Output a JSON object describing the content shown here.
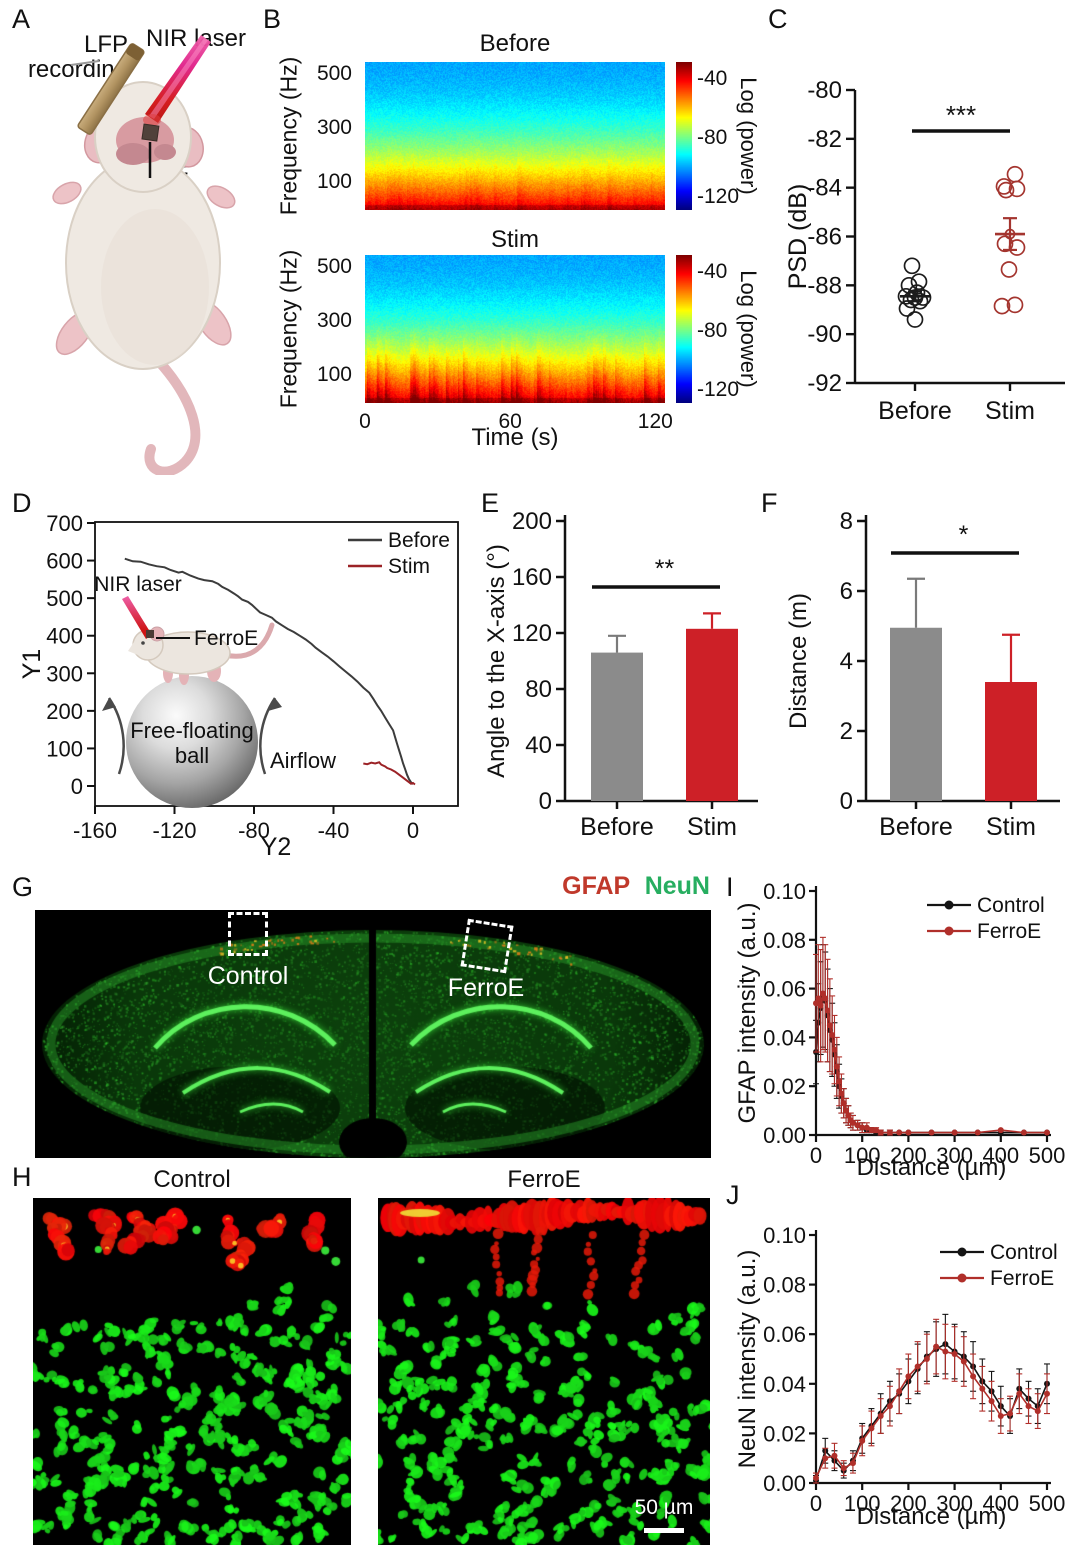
{
  "panels": {
    "A": {
      "letter": "A",
      "lfp_label": "LFP recording",
      "nir_label": "NIR laser",
      "ferroe_label": "FerroE"
    },
    "B": {
      "letter": "B"
    },
    "C": {
      "letter": "C"
    },
    "D": {
      "letter": "D"
    },
    "E": {
      "letter": "E"
    },
    "F": {
      "letter": "F"
    },
    "G": {
      "letter": "G",
      "gfap_label": "GFAP",
      "gfap_color": "#c0392b",
      "neun_label": "NeuN",
      "neun_color": "#27ae60",
      "control_label": "Control",
      "ferroe_label": "FerroE"
    },
    "H": {
      "letter": "H",
      "control_title": "Control",
      "ferroe_title": "FerroE",
      "scalebar_label": "50 µm"
    },
    "I": {
      "letter": "I"
    },
    "J": {
      "letter": "J"
    }
  },
  "chart_data": [
    {
      "id": "B",
      "type": "heatmap",
      "titles": [
        "Before",
        "Stim"
      ],
      "xlabel": "Time (s)",
      "ylabel": "Frequency (Hz)",
      "xticks": [
        0,
        60,
        120
      ],
      "yticks": [
        500,
        300,
        100
      ],
      "xlim": [
        0,
        124
      ],
      "ylim": [
        0,
        550
      ],
      "colorbar": {
        "label": "Log (power)",
        "ticks": [
          -40,
          -80,
          -120
        ],
        "range": [
          -128,
          -28
        ]
      },
      "description": "LFP spectrograms before and during NIR stimulation; power decreases with frequency; Stim shows stronger low-frequency bursts"
    },
    {
      "id": "C",
      "type": "scatter",
      "ylabel": "PSD (dB)",
      "ylim": [
        -92,
        -80
      ],
      "yticks": [
        -80,
        -82,
        -84,
        -86,
        -88,
        -90,
        -92
      ],
      "categories": [
        "Before",
        "Stim"
      ],
      "significance": "***",
      "series": [
        {
          "name": "Before",
          "color": "#1c1c1c",
          "mean": -88.45,
          "sem": 0.2,
          "points": [
            [
              -3,
              -87.2
            ],
            [
              4,
              -87.85
            ],
            [
              -6,
              -88.0
            ],
            [
              2,
              -88.3
            ],
            [
              -9,
              -88.45
            ],
            [
              0,
              -88.5
            ],
            [
              8,
              -88.5
            ],
            [
              -4,
              -88.6
            ],
            [
              5,
              -88.65
            ],
            [
              -8,
              -88.95
            ],
            [
              0,
              -89.4
            ]
          ]
        },
        {
          "name": "Stim",
          "color": "#a4352f",
          "mean": -85.9,
          "sem": 0.65,
          "points": [
            [
              5,
              -83.45
            ],
            [
              -6,
              -83.95
            ],
            [
              -4,
              -84.1
            ],
            [
              7,
              -84.05
            ],
            [
              -5,
              -86.3
            ],
            [
              7,
              -86.45
            ],
            [
              -1,
              -87.35
            ],
            [
              -8,
              -88.85
            ],
            [
              5,
              -88.8
            ]
          ]
        }
      ]
    },
    {
      "id": "D",
      "type": "line",
      "xlabel": "Y2",
      "ylabel": "Y1",
      "xlim": [
        -165,
        25
      ],
      "ylim": [
        -55,
        700
      ],
      "xticks": [
        -160,
        -120,
        -80,
        -40,
        0
      ],
      "yticks": [
        0,
        100,
        200,
        300,
        400,
        500,
        600,
        700
      ],
      "legend": [
        "Before",
        "Stim"
      ],
      "inset_labels": {
        "nir": "NIR laser",
        "ferroe": "FerroE",
        "ball_line1": "Free-floating",
        "ball_line2": "ball",
        "airflow": "Airflow"
      },
      "series": [
        {
          "name": "Before",
          "color": "#3c3c3c",
          "points": [
            [
              -145,
              605
            ],
            [
              -141,
              598
            ],
            [
              -137,
              597
            ],
            [
              -133,
              590
            ],
            [
              -129,
              585
            ],
            [
              -125,
              582
            ],
            [
              -122,
              575
            ],
            [
              -118,
              568
            ],
            [
              -116,
              570
            ],
            [
              -112,
              560
            ],
            [
              -108,
              552
            ],
            [
              -105,
              548
            ],
            [
              -101,
              545
            ],
            [
              -98,
              538
            ],
            [
              -96,
              530
            ],
            [
              -93,
              522
            ],
            [
              -90,
              512
            ],
            [
              -88,
              505
            ],
            [
              -86,
              496
            ],
            [
              -83,
              490
            ],
            [
              -81,
              482
            ],
            [
              -79,
              472
            ],
            [
              -77,
              462
            ],
            [
              -74,
              455
            ],
            [
              -71,
              448
            ],
            [
              -69,
              438
            ],
            [
              -66,
              428
            ],
            [
              -63,
              418
            ],
            [
              -60,
              410
            ],
            [
              -57,
              400
            ],
            [
              -54,
              390
            ],
            [
              -51,
              378
            ],
            [
              -49,
              368
            ],
            [
              -46,
              356
            ],
            [
              -43,
              345
            ],
            [
              -40,
              332
            ],
            [
              -37,
              318
            ],
            [
              -34,
              305
            ],
            [
              -31,
              292
            ],
            [
              -28,
              278
            ],
            [
              -25,
              262
            ],
            [
              -22,
              248
            ],
            [
              -20,
              232
            ],
            [
              -18,
              215
            ],
            [
              -16,
              200
            ],
            [
              -14,
              182
            ],
            [
              -12,
              165
            ],
            [
              -10,
              148
            ],
            [
              -9,
              130
            ],
            [
              -8,
              112
            ],
            [
              -7,
              95
            ],
            [
              -6,
              78
            ],
            [
              -5,
              60
            ],
            [
              -4,
              45
            ],
            [
              -3,
              30
            ],
            [
              -2,
              18
            ],
            [
              -1,
              10
            ],
            [
              0,
              5
            ]
          ]
        },
        {
          "name": "Stim",
          "color": "#9b2226",
          "points": [
            [
              -25,
              60
            ],
            [
              -23,
              58
            ],
            [
              -21,
              62
            ],
            [
              -19,
              60
            ],
            [
              -17,
              63
            ],
            [
              -16,
              57
            ],
            [
              -14,
              52
            ],
            [
              -13,
              48
            ],
            [
              -11,
              44
            ],
            [
              -9,
              38
            ],
            [
              -7,
              30
            ],
            [
              -5,
              22
            ],
            [
              -3,
              14
            ],
            [
              -2,
              10
            ],
            [
              -1,
              6
            ],
            [
              0,
              8
            ],
            [
              1,
              4
            ]
          ]
        }
      ]
    },
    {
      "id": "E",
      "type": "bar",
      "ylabel": "Angle to the X-axis (°)",
      "ylim": [
        0,
        200
      ],
      "yticks": [
        0,
        40,
        80,
        120,
        160,
        200
      ],
      "categories": [
        "Before",
        "Stim"
      ],
      "values": [
        106,
        123
      ],
      "errors": [
        12,
        11
      ],
      "colors": [
        "#8b8b8b",
        "#cd2027"
      ],
      "significance": "**"
    },
    {
      "id": "F",
      "type": "bar",
      "ylabel": "Distance (m)",
      "ylim": [
        0,
        8
      ],
      "yticks": [
        0,
        2,
        4,
        6,
        8
      ],
      "categories": [
        "Before",
        "Stim"
      ],
      "values": [
        4.95,
        3.4
      ],
      "errors": [
        1.4,
        1.35
      ],
      "colors": [
        "#8b8b8b",
        "#cd2027"
      ],
      "significance": "*"
    },
    {
      "id": "I",
      "type": "line",
      "xlabel": "Distance (µm)",
      "ylabel": "GFAP intensity (a.u.)",
      "xlim": [
        0,
        500
      ],
      "ylim": [
        0,
        0.1
      ],
      "xticks": [
        0,
        100,
        200,
        300,
        400,
        500
      ],
      "yticks": [
        0,
        0.02,
        0.04,
        0.06,
        0.08,
        0.1
      ],
      "legend": [
        "Control",
        "FerroE"
      ],
      "x": [
        0,
        5,
        10,
        15,
        20,
        25,
        30,
        35,
        40,
        45,
        50,
        55,
        60,
        65,
        70,
        75,
        80,
        90,
        100,
        110,
        120,
        130,
        140,
        160,
        180,
        200,
        250,
        300,
        350,
        400,
        450,
        500
      ],
      "series": [
        {
          "name": "Control",
          "color": "#141414",
          "y": [
            0.034,
            0.046,
            0.052,
            0.057,
            0.055,
            0.049,
            0.043,
            0.039,
            0.033,
            0.026,
            0.02,
            0.016,
            0.013,
            0.01,
            0.008,
            0.006,
            0.005,
            0.004,
            0.003,
            0.002,
            0.002,
            0.001,
            0.001,
            0.001,
            0.001,
            0.001,
            0.001,
            0.001,
            0.001,
            0.001,
            0.001,
            0.001
          ],
          "err": [
            0.013,
            0.016,
            0.019,
            0.021,
            0.02,
            0.019,
            0.017,
            0.015,
            0.013,
            0.011,
            0.009,
            0.007,
            0.006,
            0.005,
            0.004,
            0.003,
            0.003,
            0.002,
            0.002,
            0.001,
            0.001,
            0.001,
            0.001,
            0.001,
            0,
            0,
            0,
            0,
            0,
            0,
            0,
            0
          ]
        },
        {
          "name": "FerroE",
          "color": "#b02f2a",
          "y": [
            0.054,
            0.056,
            0.053,
            0.058,
            0.056,
            0.051,
            0.045,
            0.041,
            0.035,
            0.028,
            0.022,
            0.017,
            0.013,
            0.01,
            0.008,
            0.006,
            0.005,
            0.004,
            0.003,
            0.003,
            0.002,
            0.002,
            0.001,
            0.001,
            0.001,
            0.001,
            0.001,
            0.001,
            0.001,
            0.002,
            0.001,
            0.001
          ],
          "err": [
            0.02,
            0.022,
            0.023,
            0.023,
            0.022,
            0.021,
            0.019,
            0.016,
            0.014,
            0.012,
            0.01,
            0.008,
            0.006,
            0.005,
            0.004,
            0.003,
            0.003,
            0.002,
            0.002,
            0.002,
            0.001,
            0.001,
            0.001,
            0.001,
            0,
            0,
            0,
            0,
            0,
            0,
            0,
            0
          ]
        }
      ]
    },
    {
      "id": "J",
      "type": "line",
      "xlabel": "Distance (µm)",
      "ylabel": "NeuN intensity (a.u.)",
      "xlim": [
        0,
        500
      ],
      "ylim": [
        0,
        0.1
      ],
      "xticks": [
        0,
        100,
        200,
        300,
        400,
        500
      ],
      "yticks": [
        0,
        0.02,
        0.04,
        0.06,
        0.08,
        0.1
      ],
      "legend": [
        "Control",
        "FerroE"
      ],
      "x": [
        0,
        20,
        40,
        60,
        80,
        100,
        120,
        140,
        160,
        180,
        200,
        220,
        240,
        260,
        280,
        300,
        320,
        340,
        360,
        380,
        400,
        420,
        440,
        460,
        480,
        500
      ],
      "series": [
        {
          "name": "Control",
          "color": "#141414",
          "y": [
            0.001,
            0.013,
            0.009,
            0.005,
            0.009,
            0.018,
            0.023,
            0.028,
            0.033,
            0.036,
            0.041,
            0.046,
            0.051,
            0.054,
            0.056,
            0.053,
            0.051,
            0.047,
            0.041,
            0.037,
            0.031,
            0.027,
            0.038,
            0.034,
            0.031,
            0.04
          ],
          "err": [
            0.002,
            0.005,
            0.004,
            0.003,
            0.004,
            0.006,
            0.007,
            0.008,
            0.008,
            0.008,
            0.009,
            0.01,
            0.01,
            0.011,
            0.012,
            0.011,
            0.01,
            0.01,
            0.009,
            0.008,
            0.008,
            0.007,
            0.008,
            0.007,
            0.007,
            0.008
          ]
        },
        {
          "name": "FerroE",
          "color": "#b02f2a",
          "y": [
            0.002,
            0.01,
            0.011,
            0.006,
            0.008,
            0.017,
            0.022,
            0.027,
            0.031,
            0.037,
            0.043,
            0.047,
            0.05,
            0.055,
            0.053,
            0.052,
            0.049,
            0.043,
            0.038,
            0.033,
            0.027,
            0.028,
            0.036,
            0.031,
            0.029,
            0.036
          ],
          "err": [
            0.002,
            0.004,
            0.005,
            0.003,
            0.004,
            0.006,
            0.007,
            0.007,
            0.008,
            0.009,
            0.009,
            0.01,
            0.01,
            0.011,
            0.011,
            0.011,
            0.01,
            0.009,
            0.009,
            0.008,
            0.007,
            0.007,
            0.008,
            0.007,
            0.007,
            0.008
          ]
        }
      ]
    }
  ]
}
